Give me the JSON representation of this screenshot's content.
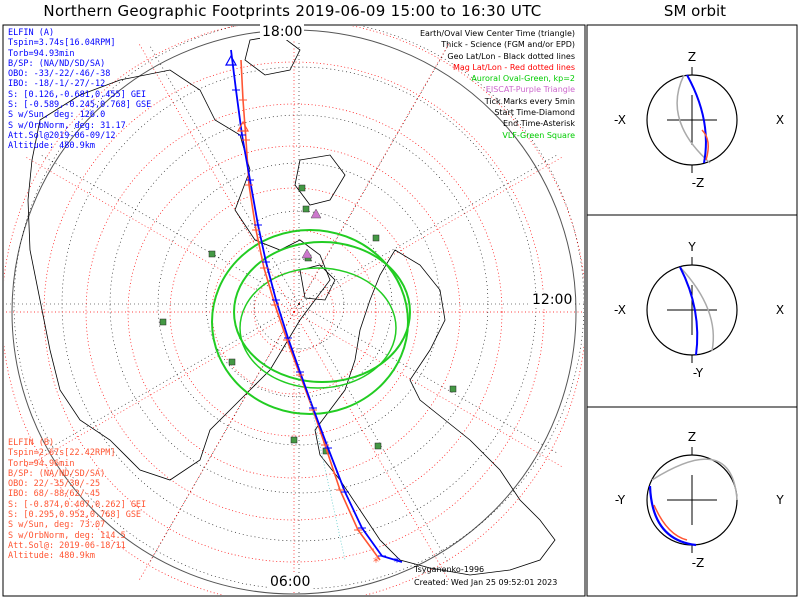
{
  "title": "Northern Geographic Footprints 2019-06-09 15:00 to 16:30 UTC",
  "sm_title": "SM orbit",
  "mlt_labels": {
    "top": "18:00",
    "right": "12:00",
    "bottom": "06:00"
  },
  "legend": [
    {
      "text": "Earth/Oval View Center Time (triangle)",
      "color": "#000000"
    },
    {
      "text": "Thick - Science (FGM and/or EPD)",
      "color": "#000000"
    },
    {
      "text": "Geo Lat/Lon - Black dotted lines",
      "color": "#000000"
    },
    {
      "text": "Mag Lat/Lon - Red dotted lines",
      "color": "#ff0000"
    },
    {
      "text": "Auroral Oval-Green, kp=2",
      "color": "#00cc00"
    },
    {
      "text": "EISCAT-Purple Triangle",
      "color": "#cc66cc"
    },
    {
      "text": "Tick Marks every 5min",
      "color": "#000000"
    },
    {
      "text": "Start Time-Diamond",
      "color": "#000000"
    },
    {
      "text": "End Time-Asterisk",
      "color": "#000000"
    },
    {
      "text": "VLF-Green Square",
      "color": "#00cc00"
    }
  ],
  "elfin_a": {
    "color": "#0000ff",
    "lines": [
      "ELFIN (A)",
      "Tspin=3.74s[16.04RPM]",
      "Torb=94.93min",
      "B/SP: (NA/ND/SD/SA)",
      "OBO: -33/-22/-46/-38",
      "IBO: -18/-1/-27/-12",
      "S: [0.126,-0.681,0.455] GEI",
      "S: [-0.589,-0.245,0.768] GSE",
      "S w/Sun, deg: 126.0",
      "S w/OrbNorm, deg: 31.17",
      "Att.Sol@2019-06-09/12",
      "Altitude: 480.9km"
    ]
  },
  "elfin_b": {
    "color": "#ff5533",
    "lines": [
      "ELFIN (B)",
      "Tspin=2.67s[22.42RPM]",
      "Torb=94.96min",
      "B/SP: (NA/ND/SD/SA)",
      "OBO: 22/-35/30/-25",
      "IBO: 68/-88/62/-45",
      "S: [-0.874,0.407,0.262] GEI",
      "S: [0.295,0.952,0.768] GSE",
      "S w/Sun, deg: 73.07",
      "S w/OrbNorm, deg: 114.5",
      "Att.Sol@: 2019-06-18/11",
      "Altitude: 480.9km"
    ]
  },
  "footer": {
    "model": "Tsyganenko-1996",
    "created": "Created: Wed Jan 25 09:52:01 2023"
  },
  "sm_panels": [
    {
      "top": "Z",
      "bottom": "-Z",
      "left": "-X",
      "right": "X"
    },
    {
      "top": "Y",
      "bottom": "-Y",
      "left": "-X",
      "right": "X"
    },
    {
      "top": "Z",
      "bottom": "-Z",
      "left": "-Y",
      "right": "Y"
    }
  ],
  "colors": {
    "elfin_a": "#0000ff",
    "elfin_b": "#ff5533",
    "geo_grid": "#000000",
    "mag_grid": "#ff0000",
    "auroral_oval": "#22cc22",
    "eiscat": "#cc77cc",
    "vlf": "#449944"
  }
}
